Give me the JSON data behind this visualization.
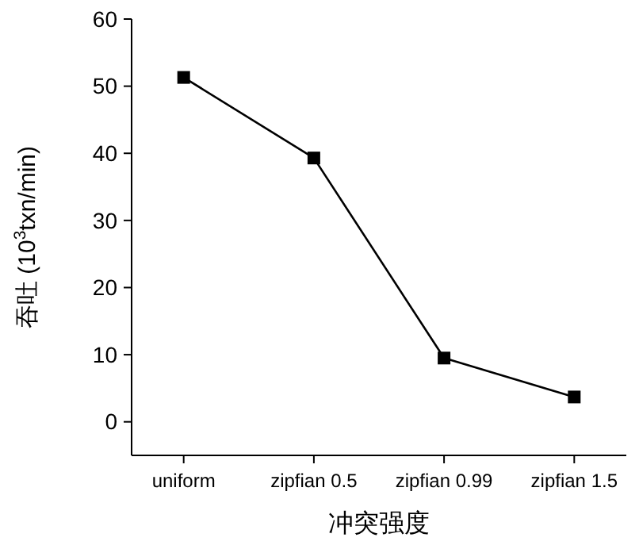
{
  "chart_data": {
    "type": "line",
    "xlabel": "冲突强度",
    "ylabel": "吞吐 (10$^{3}$txn/min)",
    "categories": [
      "uniform",
      "zipfian 0.5",
      "zipfian 0.99",
      "zipfian 1.5"
    ],
    "series": [
      {
        "color": "#000000",
        "values": [
          51.3,
          39.3,
          9.5,
          3.7
        ]
      }
    ],
    "ylim": [
      -5,
      60
    ],
    "yticks": [
      0,
      10,
      20,
      30,
      40,
      50,
      60
    ],
    "marker": "square",
    "line_style": "solid"
  }
}
